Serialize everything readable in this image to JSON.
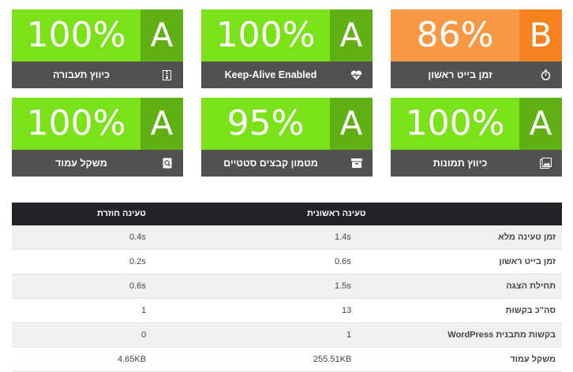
{
  "cards": [
    {
      "id": "ttfb",
      "label": "זמן בייט ראשון",
      "percent": "86%",
      "grade": "B",
      "icon": "stopwatch-icon",
      "color": "orange"
    },
    {
      "id": "keepalive",
      "label": "Keep-Alive Enabled",
      "percent": "100%",
      "grade": "A",
      "icon": "heartbeat-icon",
      "color": "green"
    },
    {
      "id": "compression",
      "label": "כיווץ תעבורה",
      "percent": "100%",
      "grade": "A",
      "icon": "zip-file-icon",
      "color": "green"
    },
    {
      "id": "images",
      "label": "כיווץ תמונות",
      "percent": "100%",
      "grade": "A",
      "icon": "image-icon",
      "color": "green"
    },
    {
      "id": "static_cache",
      "label": "מטמון קבצים סטטיים",
      "percent": "95%",
      "grade": "A",
      "icon": "archive-icon",
      "color": "green"
    },
    {
      "id": "page_weight",
      "label": "משקל עמוד",
      "percent": "100%",
      "grade": "A",
      "icon": "page-search-icon",
      "color": "green"
    }
  ],
  "table": {
    "headers": {
      "first": "טעינה ראשונית",
      "repeat": "טעינה חוזרת"
    },
    "rows": [
      {
        "name": "זמן טעינה מלא",
        "first": "1.4s",
        "repeat": "0.4s"
      },
      {
        "name": "זמן בייט ראשון",
        "first": "0.6s",
        "repeat": "0.2s"
      },
      {
        "name": "תחילת הצגה",
        "first": "1.5s",
        "repeat": "0.6s"
      },
      {
        "name": "סה\"כ בקשות",
        "first": "13",
        "repeat": "1"
      },
      {
        "name": "בקשות מתבנית WordPress",
        "first": "1",
        "repeat": "0"
      },
      {
        "name": "משקל עמוד",
        "first": "255.51KB",
        "repeat": "4.65KB"
      }
    ]
  },
  "colors": {
    "green": "#7be21a",
    "green_dark": "#5fb013",
    "orange": "#f89845",
    "orange_dark": "#f5821f",
    "label_bg": "#4f5152",
    "header_bg": "#222326"
  }
}
